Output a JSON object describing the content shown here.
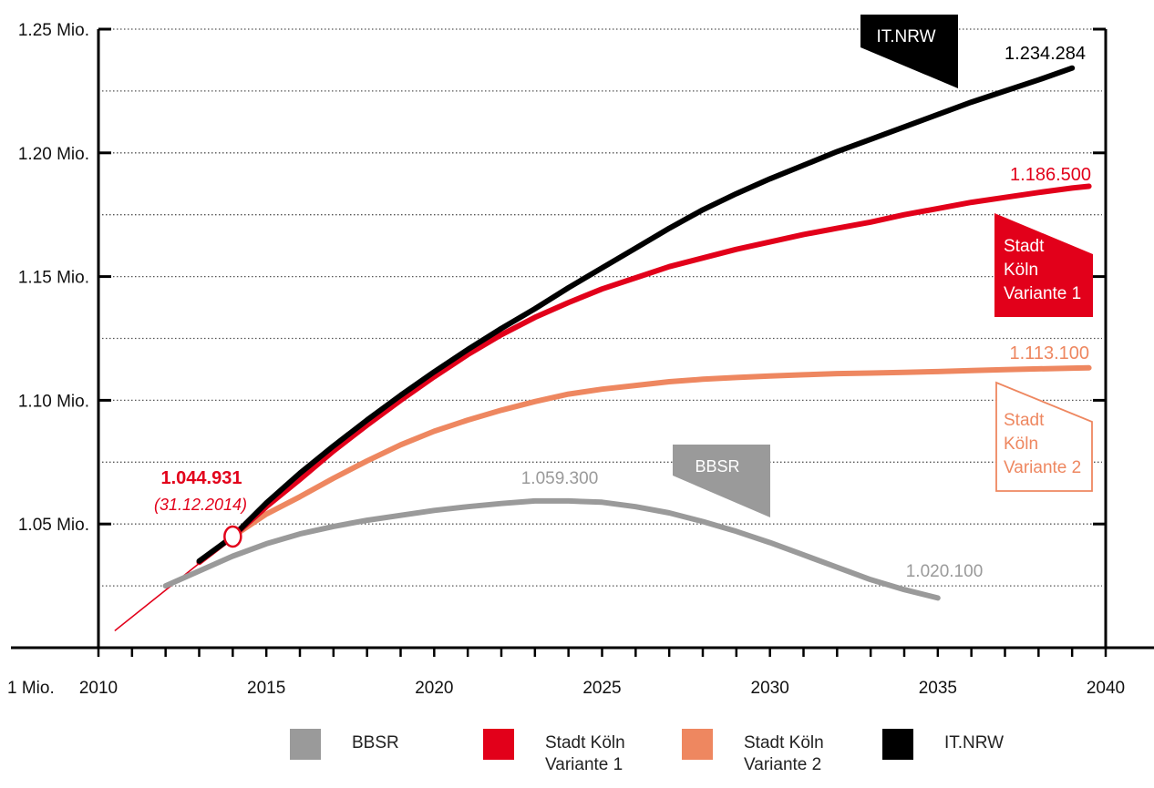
{
  "chart_data": {
    "type": "line",
    "title": "",
    "xlabel": "",
    "ylabel": "",
    "xlim": [
      2010,
      2040
    ],
    "ylim": [
      1000000,
      1250000
    ],
    "x_ticks": [
      "2010",
      "2015",
      "2020",
      "2025",
      "2030",
      "2035",
      "2040"
    ],
    "y_ticks": [
      "1 Mio.",
      "1.05 Mio.",
      "1.10 Mio.",
      "1.15 Mio.",
      "1.20 Mio.",
      "1.25 Mio."
    ],
    "colors": {
      "bbsr": "#9a9a9a",
      "v1": "#e2001a",
      "v2": "#ee8760",
      "itnrw": "#000000",
      "historic": "#e2001a"
    },
    "series": [
      {
        "key": "historic",
        "name": "",
        "x": [
          2010.5,
          2014.0
        ],
        "y": [
          1007000,
          1044931
        ]
      },
      {
        "key": "bbsr",
        "name": "BBSR",
        "x": [
          2012,
          2014,
          2015,
          2016,
          2017,
          2018,
          2019,
          2020,
          2021,
          2022,
          2023,
          2024,
          2025,
          2026,
          2027,
          2028,
          2029,
          2030,
          2031,
          2032,
          2033,
          2034,
          2035
        ],
        "y": [
          1025000,
          1037000,
          1042000,
          1046000,
          1049000,
          1051500,
          1053500,
          1055500,
          1057000,
          1058300,
          1059300,
          1059300,
          1058800,
          1057000,
          1054500,
          1051000,
          1047000,
          1042500,
          1037500,
          1032500,
          1027500,
          1023500,
          1020100
        ]
      },
      {
        "key": "v1",
        "name": "Stadt Köln Variante 1",
        "x": [
          2013,
          2014,
          2015,
          2016,
          2017,
          2018,
          2019,
          2020,
          2021,
          2022,
          2023,
          2024,
          2025,
          2026,
          2027,
          2028,
          2029,
          2030,
          2031,
          2032,
          2033,
          2034,
          2035,
          2036,
          2037,
          2038,
          2039,
          2039.5
        ],
        "y": [
          1034500,
          1044931,
          1057000,
          1068000,
          1079500,
          1090000,
          1100000,
          1109500,
          1118500,
          1126500,
          1133500,
          1139500,
          1145000,
          1149500,
          1154000,
          1157500,
          1161000,
          1164000,
          1167000,
          1169500,
          1172000,
          1175000,
          1177500,
          1180000,
          1182000,
          1184000,
          1185800,
          1186500
        ]
      },
      {
        "key": "v2",
        "name": "Stadt Köln Variante 2",
        "x": [
          2014,
          2015,
          2016,
          2017,
          2018,
          2019,
          2020,
          2021,
          2022,
          2023,
          2024,
          2025,
          2026,
          2027,
          2028,
          2029,
          2030,
          2031,
          2032,
          2033,
          2034,
          2035,
          2036,
          2037,
          2038,
          2039,
          2039.5
        ],
        "y": [
          1044931,
          1054000,
          1061000,
          1068500,
          1075500,
          1082000,
          1087500,
          1092000,
          1096000,
          1099500,
          1102500,
          1104500,
          1106000,
          1107500,
          1108500,
          1109200,
          1109800,
          1110300,
          1110800,
          1111000,
          1111300,
          1111600,
          1112000,
          1112400,
          1112700,
          1113000,
          1113100
        ]
      },
      {
        "key": "itnrw",
        "name": "IT.NRW",
        "x": [
          2013,
          2014,
          2015,
          2016,
          2017,
          2018,
          2019,
          2020,
          2021,
          2022,
          2023,
          2024,
          2025,
          2026,
          2027,
          2028,
          2029,
          2030,
          2031,
          2032,
          2033,
          2034,
          2035,
          2036,
          2037,
          2038,
          2039
        ],
        "y": [
          1035000,
          1044931,
          1058500,
          1070500,
          1081500,
          1092000,
          1102000,
          1111500,
          1120500,
          1129000,
          1137000,
          1145500,
          1153500,
          1161500,
          1169500,
          1177000,
          1183500,
          1189500,
          1195000,
          1200500,
          1205500,
          1210500,
          1215500,
          1220500,
          1225000,
          1229500,
          1234284
        ]
      }
    ],
    "annotations": {
      "start_value": "1.044.931",
      "start_date": "(31.12.2014)",
      "itnrw_end": "1.234.284",
      "v1_end": "1.186.500",
      "v2_end": "1.113.100",
      "bbsr_peak": "1.059.300",
      "bbsr_end": "1.020.100",
      "flag_itnrw": "IT.NRW",
      "flag_v1": [
        "Stadt",
        "Köln",
        "Variante 1"
      ],
      "flag_v2": [
        "Stadt",
        "Köln",
        "Variante 2"
      ],
      "flag_bbsr": "BBSR"
    }
  },
  "legend": [
    {
      "key": "bbsr",
      "lines": [
        "BBSR"
      ]
    },
    {
      "key": "v1",
      "lines": [
        "Stadt Köln",
        "Variante 1"
      ]
    },
    {
      "key": "v2",
      "lines": [
        "Stadt Köln",
        "Variante 2"
      ]
    },
    {
      "key": "itnrw",
      "lines": [
        "IT.NRW"
      ]
    }
  ]
}
